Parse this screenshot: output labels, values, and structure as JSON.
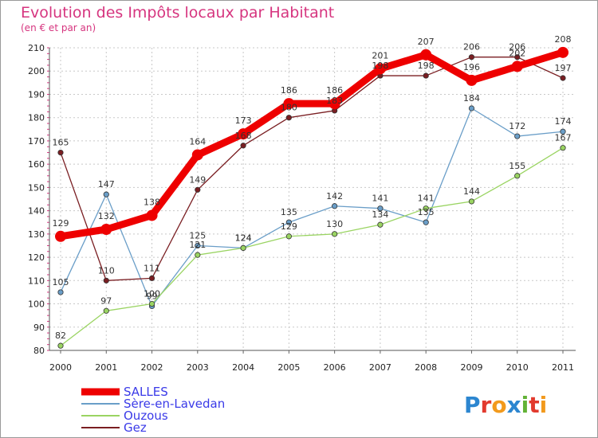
{
  "chart_data": {
    "type": "line",
    "title": "Evolution des Impôts locaux par Habitant",
    "subtitle": "(en € et par an)",
    "x": [
      "2000",
      "2001",
      "2002",
      "2003",
      "2004",
      "2005",
      "2006",
      "2007",
      "2008",
      "2009",
      "2010",
      "2011"
    ],
    "ylim": [
      80,
      210
    ],
    "yticks": [
      "80",
      "90",
      "100",
      "110",
      "120",
      "130",
      "140",
      "150",
      "160",
      "170",
      "180",
      "190",
      "200",
      "210"
    ],
    "grid": true,
    "legend_position": "bottom-left",
    "series": [
      {
        "name": "SALLES",
        "color": "#ee0000",
        "values": [
          129,
          132,
          138,
          164,
          173,
          186,
          186,
          201,
          207,
          196,
          202,
          208
        ]
      },
      {
        "name": "Sère-en-Lavedan",
        "color": "#6a9ec8",
        "values": [
          105,
          147,
          99,
          125,
          124,
          135,
          142,
          141,
          135,
          184,
          172,
          174
        ]
      },
      {
        "name": "Ouzous",
        "color": "#9ad462",
        "values": [
          82,
          97,
          100,
          121,
          124,
          129,
          130,
          134,
          141,
          144,
          155,
          167
        ]
      },
      {
        "name": "Gez",
        "color": "#7a1e22",
        "values": [
          165,
          110,
          111,
          149,
          168,
          180,
          183,
          198,
          198,
          206,
          206,
          197
        ]
      }
    ]
  },
  "logo": {
    "text": "Proxiti",
    "letters": [
      "P",
      "r",
      "o",
      "x",
      "i",
      "t",
      "i"
    ],
    "colors": [
      "#2c86d0",
      "#e23a2e",
      "#f29a1d",
      "#2c86d0",
      "#62b236",
      "#e23a2e",
      "#f29a1d"
    ]
  }
}
